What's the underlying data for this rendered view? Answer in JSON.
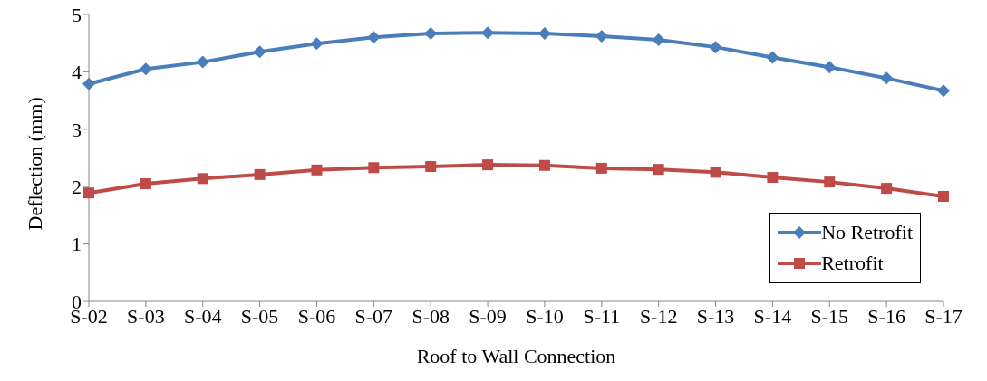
{
  "chart_data": {
    "type": "line",
    "xlabel": "Roof to Wall Connection",
    "ylabel": "Deflection (mm)",
    "categories": [
      "S-02",
      "S-03",
      "S-04",
      "S-05",
      "S-06",
      "S-07",
      "S-08",
      "S-09",
      "S-10",
      "S-11",
      "S-12",
      "S-13",
      "S-14",
      "S-15",
      "S-16",
      "S-17"
    ],
    "series": [
      {
        "name": "No Retrofit",
        "color": "#4a7ebb",
        "marker": "diamond",
        "values": [
          3.79,
          4.05,
          4.17,
          4.35,
          4.49,
          4.6,
          4.67,
          4.68,
          4.67,
          4.62,
          4.56,
          4.43,
          4.25,
          4.08,
          3.89,
          3.67
        ]
      },
      {
        "name": "Retrofit",
        "color": "#be4b48",
        "marker": "square",
        "values": [
          1.89,
          2.05,
          2.14,
          2.21,
          2.29,
          2.33,
          2.35,
          2.38,
          2.37,
          2.32,
          2.3,
          2.25,
          2.16,
          2.08,
          1.97,
          1.83
        ]
      }
    ],
    "ylim": [
      0,
      5
    ],
    "yticks": [
      0,
      1,
      2,
      3,
      4,
      5
    ],
    "grid": false,
    "legend": "bottom right",
    "line_style": "solid"
  }
}
